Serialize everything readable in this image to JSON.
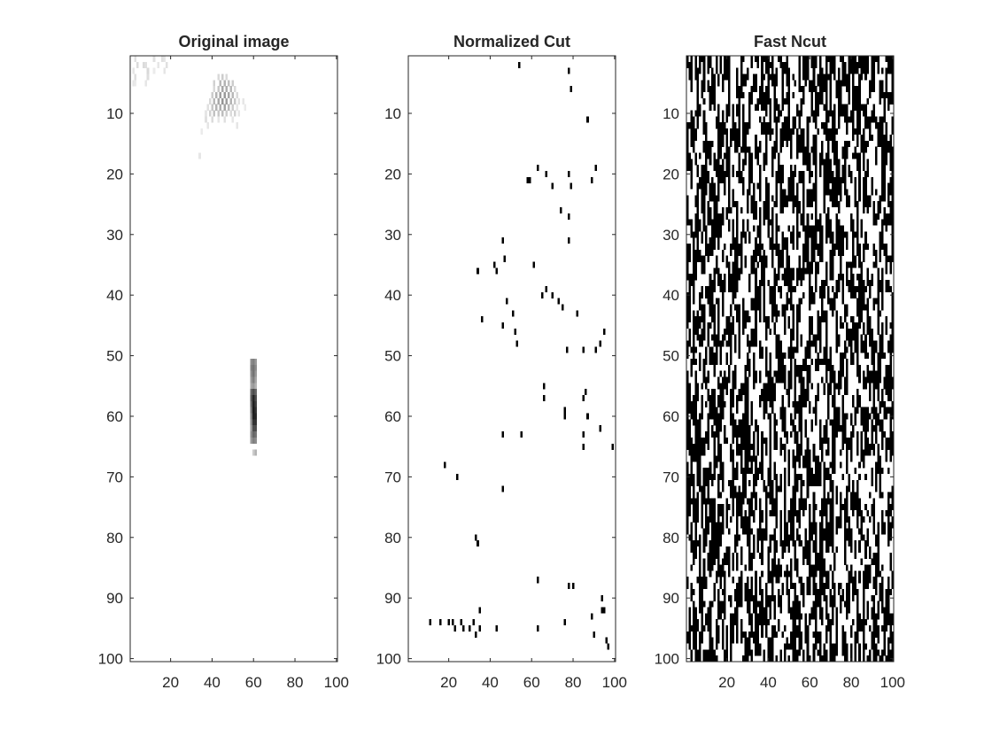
{
  "chart_data": [
    {
      "type": "heatmap",
      "title": "Original image",
      "xlim": [
        0.5,
        100.5
      ],
      "ylim": [
        0.5,
        100.5
      ],
      "y_reversed": true,
      "x_ticks": [
        20,
        40,
        60,
        80,
        100
      ],
      "y_ticks": [
        10,
        20,
        30,
        40,
        50,
        60,
        70,
        80,
        90,
        100
      ],
      "colormap": "gray",
      "background_value": 1.0,
      "points": [
        [
          3,
          1,
          0.88
        ],
        [
          4,
          2,
          0.86
        ],
        [
          2,
          3,
          0.9
        ],
        [
          3,
          4,
          0.87
        ],
        [
          2,
          5,
          0.9
        ],
        [
          3,
          5,
          0.92
        ],
        [
          7,
          2,
          0.86
        ],
        [
          8,
          2,
          0.88
        ],
        [
          9,
          3,
          0.85
        ],
        [
          9,
          4,
          0.87
        ],
        [
          8,
          5,
          0.9
        ],
        [
          12,
          1,
          0.88
        ],
        [
          14,
          2,
          0.9
        ],
        [
          12,
          3,
          0.92
        ],
        [
          16,
          1,
          0.88
        ],
        [
          17,
          1,
          0.9
        ],
        [
          18,
          2,
          0.88
        ],
        [
          17,
          3,
          0.9
        ],
        [
          43,
          4,
          0.85
        ],
        [
          45,
          4,
          0.8
        ],
        [
          47,
          4,
          0.85
        ],
        [
          41,
          5,
          0.82
        ],
        [
          44,
          5,
          0.72
        ],
        [
          46,
          5,
          0.7
        ],
        [
          48,
          5,
          0.75
        ],
        [
          50,
          5,
          0.8
        ],
        [
          41,
          6,
          0.85
        ],
        [
          43,
          6,
          0.78
        ],
        [
          45,
          6,
          0.65
        ],
        [
          47,
          6,
          0.68
        ],
        [
          49,
          6,
          0.72
        ],
        [
          51,
          6,
          0.85
        ],
        [
          40,
          7,
          0.8
        ],
        [
          42,
          7,
          0.7
        ],
        [
          44,
          7,
          0.62
        ],
        [
          46,
          7,
          0.6
        ],
        [
          48,
          7,
          0.65
        ],
        [
          50,
          7,
          0.72
        ],
        [
          52,
          7,
          0.85
        ],
        [
          39,
          8,
          0.85
        ],
        [
          41,
          8,
          0.72
        ],
        [
          43,
          8,
          0.66
        ],
        [
          45,
          8,
          0.58
        ],
        [
          47,
          8,
          0.62
        ],
        [
          49,
          8,
          0.7
        ],
        [
          51,
          8,
          0.78
        ],
        [
          53,
          8,
          0.88
        ],
        [
          38,
          9,
          0.88
        ],
        [
          40,
          9,
          0.78
        ],
        [
          42,
          9,
          0.7
        ],
        [
          44,
          9,
          0.68
        ],
        [
          46,
          9,
          0.64
        ],
        [
          48,
          9,
          0.72
        ],
        [
          50,
          9,
          0.8
        ],
        [
          52,
          9,
          0.9
        ],
        [
          37,
          10,
          0.9
        ],
        [
          39,
          10,
          0.82
        ],
        [
          41,
          10,
          0.76
        ],
        [
          43,
          10,
          0.78
        ],
        [
          45,
          10,
          0.74
        ],
        [
          47,
          10,
          0.8
        ],
        [
          49,
          10,
          0.86
        ],
        [
          51,
          10,
          0.82
        ],
        [
          53,
          10,
          0.9
        ],
        [
          37,
          11,
          0.88
        ],
        [
          40,
          11,
          0.86
        ],
        [
          43,
          11,
          0.9
        ],
        [
          46,
          11,
          0.88
        ],
        [
          50,
          11,
          0.9
        ],
        [
          38,
          12,
          0.9
        ],
        [
          52,
          12,
          0.9
        ],
        [
          35,
          13,
          0.92
        ],
        [
          55,
          8,
          0.9
        ],
        [
          56,
          9,
          0.92
        ],
        [
          34,
          17,
          0.9
        ],
        [
          59,
          51,
          0.55
        ],
        [
          60,
          51,
          0.5
        ],
        [
          61,
          51,
          0.6
        ],
        [
          59,
          52,
          0.5
        ],
        [
          60,
          52,
          0.45
        ],
        [
          61,
          52,
          0.55
        ],
        [
          59,
          53,
          0.55
        ],
        [
          60,
          53,
          0.45
        ],
        [
          61,
          53,
          0.6
        ],
        [
          59,
          54,
          0.6
        ],
        [
          60,
          54,
          0.5
        ],
        [
          61,
          54,
          0.65
        ],
        [
          59,
          55,
          0.65
        ],
        [
          60,
          55,
          0.6
        ],
        [
          61,
          55,
          0.7
        ],
        [
          59,
          56,
          0.4
        ],
        [
          60,
          56,
          0.3
        ],
        [
          61,
          56,
          0.4
        ],
        [
          59,
          57,
          0.35
        ],
        [
          60,
          57,
          0.15
        ],
        [
          61,
          57,
          0.3
        ],
        [
          59,
          58,
          0.4
        ],
        [
          60,
          58,
          0.12
        ],
        [
          61,
          58,
          0.25
        ],
        [
          59,
          59,
          0.45
        ],
        [
          60,
          59,
          0.1
        ],
        [
          61,
          59,
          0.2
        ],
        [
          59,
          60,
          0.5
        ],
        [
          60,
          60,
          0.12
        ],
        [
          61,
          60,
          0.15
        ],
        [
          59,
          61,
          0.55
        ],
        [
          60,
          61,
          0.2
        ],
        [
          61,
          61,
          0.2
        ],
        [
          59,
          62,
          0.6
        ],
        [
          60,
          62,
          0.3
        ],
        [
          61,
          62,
          0.3
        ],
        [
          59,
          63,
          0.55
        ],
        [
          60,
          63,
          0.4
        ],
        [
          61,
          63,
          0.45
        ],
        [
          59,
          64,
          0.6
        ],
        [
          60,
          64,
          0.5
        ],
        [
          61,
          64,
          0.55
        ],
        [
          60,
          66,
          0.8
        ],
        [
          61,
          66,
          0.7
        ]
      ]
    },
    {
      "type": "heatmap",
      "title": "Normalized Cut",
      "xlim": [
        0.5,
        100.5
      ],
      "ylim": [
        0.5,
        100.5
      ],
      "y_reversed": true,
      "x_ticks": [
        20,
        40,
        60,
        80,
        100
      ],
      "y_ticks": [
        10,
        20,
        30,
        40,
        50,
        60,
        70,
        80,
        90,
        100
      ],
      "colormap": "binary",
      "background_value": 0,
      "points": [
        [
          54,
          2
        ],
        [
          78,
          3
        ],
        [
          79,
          6
        ],
        [
          87,
          11
        ],
        [
          63,
          19
        ],
        [
          67,
          20
        ],
        [
          78,
          20
        ],
        [
          91,
          19
        ],
        [
          58,
          21
        ],
        [
          59,
          21
        ],
        [
          70,
          22
        ],
        [
          79,
          22
        ],
        [
          89,
          21
        ],
        [
          74,
          26
        ],
        [
          78,
          27
        ],
        [
          46,
          31
        ],
        [
          78,
          31
        ],
        [
          47,
          34
        ],
        [
          42,
          35
        ],
        [
          43,
          36
        ],
        [
          61,
          35
        ],
        [
          34,
          36
        ],
        [
          67,
          39
        ],
        [
          65,
          40
        ],
        [
          70,
          40
        ],
        [
          73,
          41
        ],
        [
          75,
          42
        ],
        [
          48,
          41
        ],
        [
          82,
          43
        ],
        [
          46,
          45
        ],
        [
          36,
          44
        ],
        [
          51,
          43
        ],
        [
          52,
          46
        ],
        [
          53,
          48
        ],
        [
          93,
          48
        ],
        [
          77,
          49
        ],
        [
          85,
          49
        ],
        [
          95,
          46
        ],
        [
          91,
          49
        ],
        [
          66,
          55
        ],
        [
          86,
          56
        ],
        [
          66,
          57
        ],
        [
          85,
          57
        ],
        [
          76,
          59
        ],
        [
          76,
          60
        ],
        [
          87,
          60
        ],
        [
          93,
          62
        ],
        [
          46,
          63
        ],
        [
          55,
          63
        ],
        [
          85,
          63
        ],
        [
          85,
          65
        ],
        [
          99,
          65
        ],
        [
          18,
          68
        ],
        [
          24,
          70
        ],
        [
          46,
          72
        ],
        [
          33,
          80
        ],
        [
          34,
          81
        ],
        [
          63,
          87
        ],
        [
          78,
          88
        ],
        [
          80,
          88
        ],
        [
          94,
          90
        ],
        [
          35,
          92
        ],
        [
          94,
          92
        ],
        [
          95,
          92
        ],
        [
          89,
          93
        ],
        [
          11,
          94
        ],
        [
          16,
          94
        ],
        [
          20,
          94
        ],
        [
          22,
          94
        ],
        [
          23,
          95
        ],
        [
          26,
          94
        ],
        [
          30,
          95
        ],
        [
          33,
          96
        ],
        [
          27,
          95
        ],
        [
          32,
          94
        ],
        [
          35,
          95
        ],
        [
          43,
          95
        ],
        [
          63,
          95
        ],
        [
          76,
          94
        ],
        [
          90,
          96
        ],
        [
          96,
          97
        ],
        [
          97,
          98
        ]
      ]
    },
    {
      "type": "heatmap",
      "title": "Fast Ncut",
      "xlim": [
        0.5,
        100.5
      ],
      "ylim": [
        0.5,
        100.5
      ],
      "y_reversed": true,
      "x_ticks": [
        20,
        40,
        60,
        80,
        100
      ],
      "y_ticks": [
        10,
        20,
        30,
        40,
        50,
        60,
        70,
        80,
        90,
        100
      ],
      "colormap": "binary",
      "pattern": "dense random binary labels (approximately half of the 100x100 pixels black, clustered in short vertical runs)",
      "grid_size": [
        100,
        100
      ],
      "black_fraction": 0.5
    }
  ]
}
